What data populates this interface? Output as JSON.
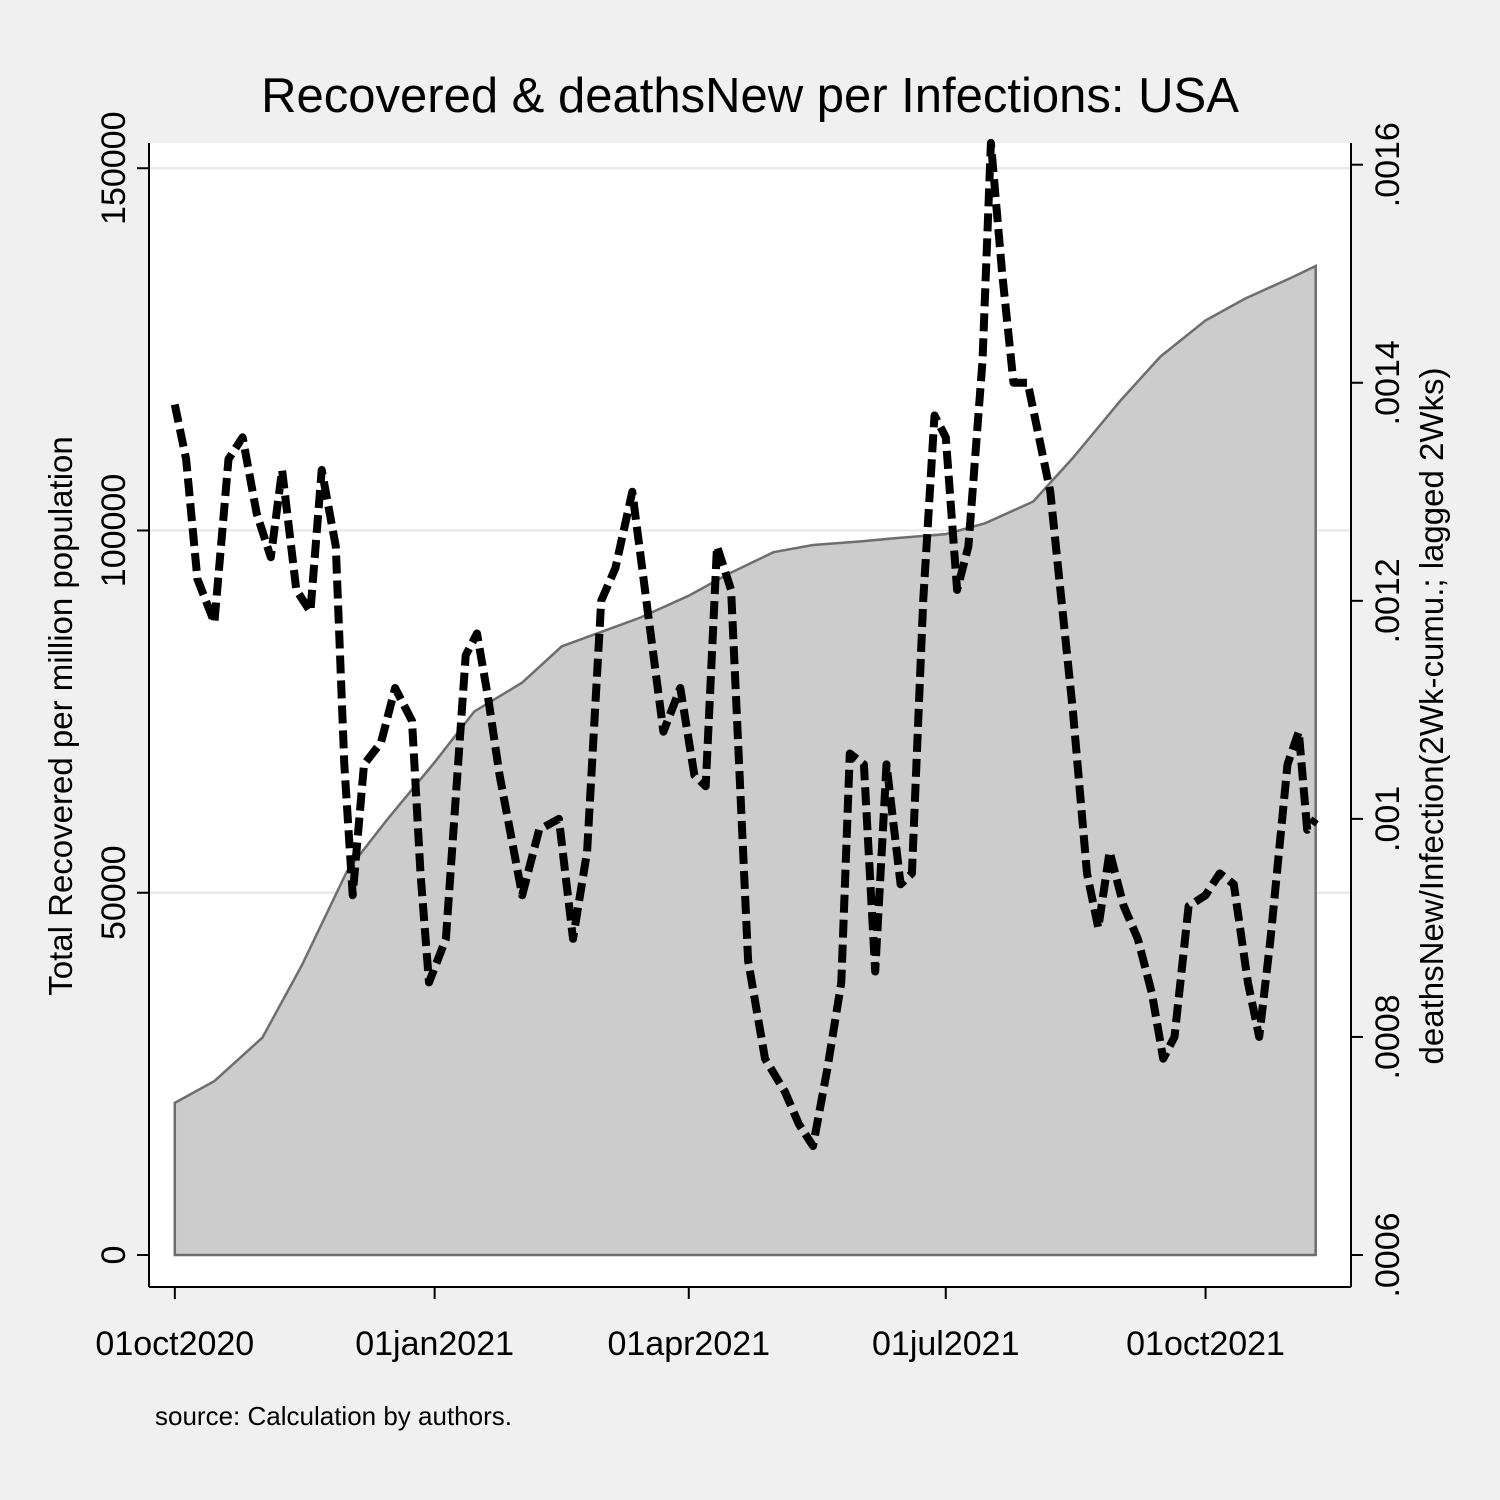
{
  "chart_data": {
    "type": "area",
    "title": "Recovered & deathsNew per Infections: USA",
    "note": "source: Calculation by authors.",
    "x_ticks": [
      "01oct2020",
      "01jan2021",
      "01apr2021",
      "01jul2021",
      "01oct2021"
    ],
    "x_range": [
      "2020-09-30",
      "2021-11-13"
    ],
    "y_left": {
      "label": "Total Recovered per million population",
      "range": [
        0,
        155000
      ],
      "ticks": [
        "0",
        "50000",
        "100000",
        "150000"
      ]
    },
    "y_right": {
      "label": "deathsNew/Infection(2Wk-cumu.; lagged 2Wks)",
      "range": [
        0.0006,
        0.00163
      ],
      "ticks": [
        ".0006",
        ".0008",
        ".001",
        ".0012",
        ".0014",
        ".0016"
      ]
    },
    "grid": true,
    "series": [
      {
        "style": "filled area, gray",
        "axis": "left",
        "points": [
          [
            "2020-10-01",
            21000
          ],
          [
            "2020-10-15",
            24000
          ],
          [
            "2020-11-01",
            30000
          ],
          [
            "2020-11-15",
            40000
          ],
          [
            "2020-12-01",
            53000
          ],
          [
            "2020-12-15",
            60000
          ],
          [
            "2021-01-01",
            68000
          ],
          [
            "2021-01-15",
            75000
          ],
          [
            "2021-02-01",
            79000
          ],
          [
            "2021-02-15",
            84000
          ],
          [
            "2021-03-01",
            86000
          ],
          [
            "2021-03-15",
            88000
          ],
          [
            "2021-04-01",
            91000
          ],
          [
            "2021-04-15",
            94000
          ],
          [
            "2021-05-01",
            97000
          ],
          [
            "2021-05-15",
            98000
          ],
          [
            "2021-06-01",
            98500
          ],
          [
            "2021-06-15",
            99000
          ],
          [
            "2021-07-01",
            99500
          ],
          [
            "2021-07-15",
            101000
          ],
          [
            "2021-08-01",
            104000
          ],
          [
            "2021-08-15",
            110000
          ],
          [
            "2021-09-01",
            118000
          ],
          [
            "2021-09-15",
            124000
          ],
          [
            "2021-10-01",
            129000
          ],
          [
            "2021-10-15",
            132000
          ],
          [
            "2021-11-01",
            135000
          ],
          [
            "2021-11-09",
            136500
          ]
        ]
      },
      {
        "style": "dashed line, black",
        "axis": "right",
        "points": [
          [
            "2020-10-01",
            0.00138
          ],
          [
            "2020-10-05",
            0.00133
          ],
          [
            "2020-10-09",
            0.00122
          ],
          [
            "2020-10-15",
            0.00118
          ],
          [
            "2020-10-20",
            0.00133
          ],
          [
            "2020-10-25",
            0.00135
          ],
          [
            "2020-10-30",
            0.00128
          ],
          [
            "2020-11-04",
            0.00124
          ],
          [
            "2020-11-08",
            0.00132
          ],
          [
            "2020-11-13",
            0.00121
          ],
          [
            "2020-11-18",
            0.00119
          ],
          [
            "2020-11-22",
            0.00132
          ],
          [
            "2020-11-27",
            0.00125
          ],
          [
            "2020-11-30",
            0.00105
          ],
          [
            "2020-12-03",
            0.00093
          ],
          [
            "2020-12-07",
            0.00105
          ],
          [
            "2020-12-13",
            0.00107
          ],
          [
            "2020-12-18",
            0.00112
          ],
          [
            "2020-12-24",
            0.00109
          ],
          [
            "2020-12-27",
            0.00095
          ],
          [
            "2020-12-30",
            0.00085
          ],
          [
            "2021-01-05",
            0.00089
          ],
          [
            "2021-01-12",
            0.00115
          ],
          [
            "2021-01-16",
            0.00117
          ],
          [
            "2021-01-20",
            0.00111
          ],
          [
            "2021-01-24",
            0.00104
          ],
          [
            "2021-02-01",
            0.00093
          ],
          [
            "2021-02-07",
            0.00099
          ],
          [
            "2021-02-14",
            0.001
          ],
          [
            "2021-02-19",
            0.00089
          ],
          [
            "2021-02-24",
            0.00097
          ],
          [
            "2021-03-01",
            0.0012
          ],
          [
            "2021-03-06",
            0.00123
          ],
          [
            "2021-03-12",
            0.0013
          ],
          [
            "2021-03-18",
            0.00118
          ],
          [
            "2021-03-23",
            0.00108
          ],
          [
            "2021-03-29",
            0.00112
          ],
          [
            "2021-04-03",
            0.00104
          ],
          [
            "2021-04-07",
            0.00103
          ],
          [
            "2021-04-11",
            0.00125
          ],
          [
            "2021-04-16",
            0.00121
          ],
          [
            "2021-04-22",
            0.00087
          ],
          [
            "2021-04-28",
            0.00078
          ],
          [
            "2021-05-05",
            0.00075
          ],
          [
            "2021-05-10",
            0.00072
          ],
          [
            "2021-05-15",
            0.0007
          ],
          [
            "2021-05-20",
            0.00077
          ],
          [
            "2021-05-25",
            0.00085
          ],
          [
            "2021-05-28",
            0.00106
          ],
          [
            "2021-06-02",
            0.00105
          ],
          [
            "2021-06-06",
            0.00086
          ],
          [
            "2021-06-10",
            0.00105
          ],
          [
            "2021-06-15",
            0.00094
          ],
          [
            "2021-06-19",
            0.00095
          ],
          [
            "2021-06-23",
            0.0012
          ],
          [
            "2021-06-27",
            0.00137
          ],
          [
            "2021-07-01",
            0.00135
          ],
          [
            "2021-07-05",
            0.00121
          ],
          [
            "2021-07-09",
            0.00125
          ],
          [
            "2021-07-14",
            0.00142
          ],
          [
            "2021-07-17",
            0.00162
          ],
          [
            "2021-07-21",
            0.0015
          ],
          [
            "2021-07-25",
            0.0014
          ],
          [
            "2021-07-30",
            0.0014
          ],
          [
            "2021-08-03",
            0.00135
          ],
          [
            "2021-08-07",
            0.0013
          ],
          [
            "2021-08-11",
            0.0012
          ],
          [
            "2021-08-15",
            0.0011
          ],
          [
            "2021-08-20",
            0.00095
          ],
          [
            "2021-08-24",
            0.0009
          ],
          [
            "2021-08-28",
            0.00097
          ],
          [
            "2021-09-02",
            0.00092
          ],
          [
            "2021-09-07",
            0.00089
          ],
          [
            "2021-09-12",
            0.00084
          ],
          [
            "2021-09-16",
            0.00078
          ],
          [
            "2021-09-20",
            0.0008
          ],
          [
            "2021-09-25",
            0.00092
          ],
          [
            "2021-10-01",
            0.00093
          ],
          [
            "2021-10-06",
            0.00095
          ],
          [
            "2021-10-11",
            0.00094
          ],
          [
            "2021-10-16",
            0.00085
          ],
          [
            "2021-10-20",
            0.0008
          ],
          [
            "2021-10-24",
            0.00089
          ],
          [
            "2021-10-30",
            0.00105
          ],
          [
            "2021-11-03",
            0.00108
          ],
          [
            "2021-11-06",
            0.00099
          ],
          [
            "2021-11-09",
            0.001
          ]
        ]
      }
    ]
  }
}
